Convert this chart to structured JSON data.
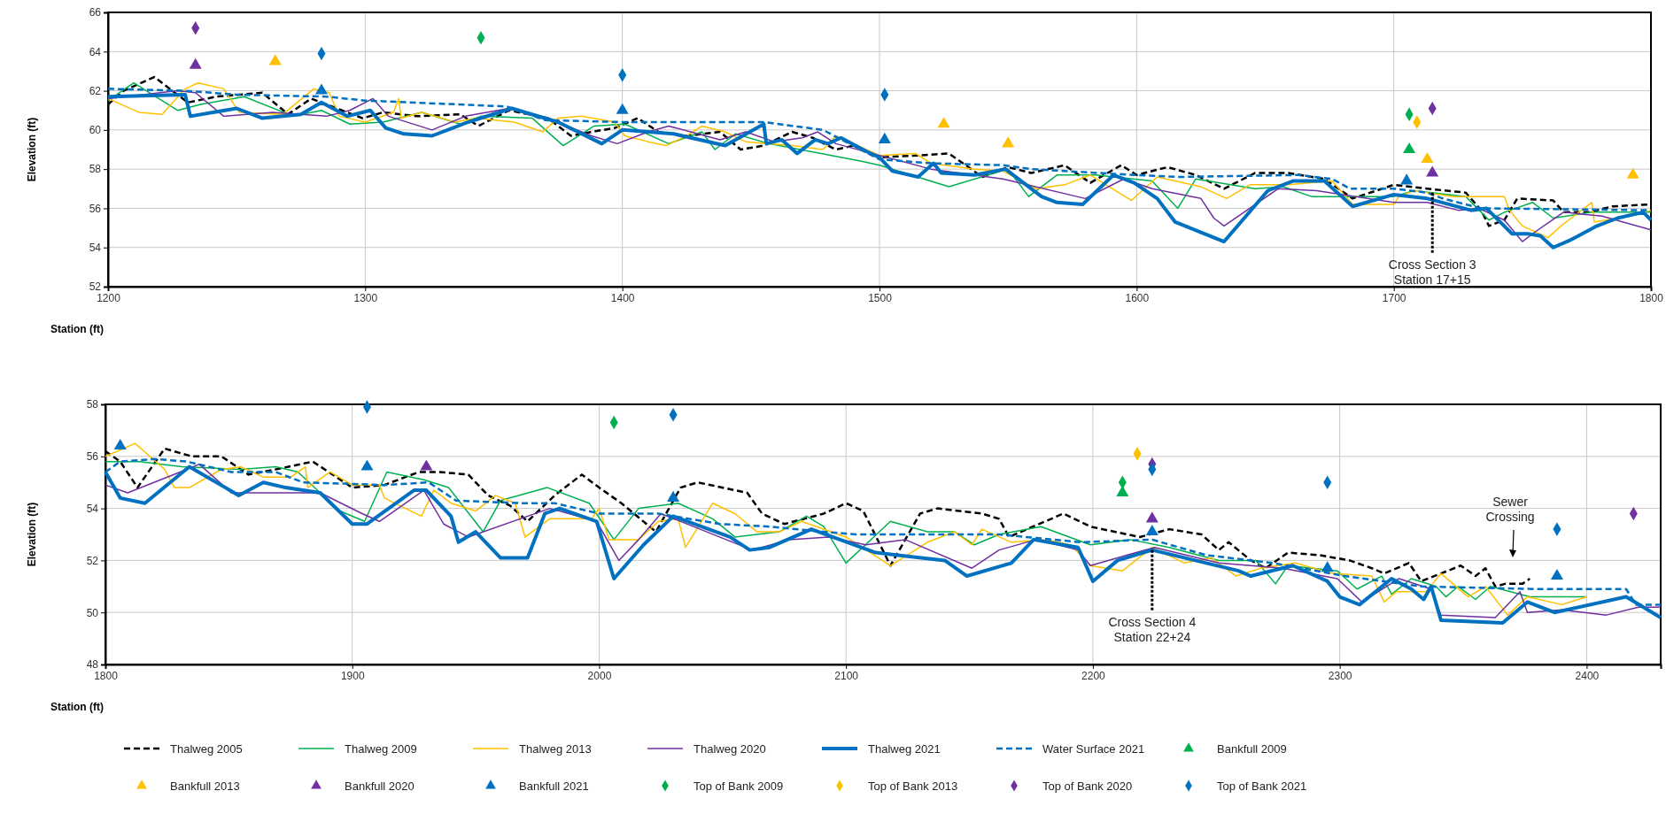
{
  "chart_data": [
    {
      "type": "line",
      "xlabel": "Station (ft)",
      "ylabel": "Elevation (ft)",
      "xlim": [
        1200,
        1800
      ],
      "xticks": [
        1200,
        1300,
        1400,
        1500,
        1600,
        1700,
        1800
      ],
      "ylim": [
        52,
        66
      ],
      "yticks": [
        52,
        54,
        56,
        58,
        60,
        62,
        64,
        66
      ],
      "grid": true,
      "legend": "bottom",
      "annotations": [
        {
          "text": "Cross Section 3\nStation 17+15",
          "x": 1715,
          "y": 56.8
        }
      ],
      "series": [
        {
          "name": "Thalweg 2005",
          "color": "#000000",
          "line_style": "dashed",
          "marker": "none",
          "x": [
            1200,
            1206,
            1218,
            1231,
            1242,
            1260,
            1270,
            1279,
            1299,
            1307,
            1320,
            1337,
            1344,
            1356,
            1371,
            1380,
            1388,
            1397,
            1406,
            1414,
            1425,
            1438,
            1446,
            1455,
            1466,
            1474,
            1483,
            1490,
            1500,
            1515,
            1527,
            1540,
            1550,
            1559,
            1572,
            1582,
            1594,
            1600,
            1612,
            1623,
            1634,
            1646,
            1659,
            1673,
            1684,
            1700,
            1713,
            1728,
            1734,
            1737,
            1743,
            1748,
            1762,
            1766,
            1776,
            1785,
            1800
          ],
          "values": [
            61.3,
            62.0,
            62.7,
            61.4,
            61.7,
            61.9,
            60.8,
            61.6,
            60.6,
            60.9,
            60.7,
            60.8,
            60.2,
            61.0,
            60.6,
            59.7,
            59.9,
            60.1,
            60.6,
            59.9,
            59.7,
            59.9,
            59.0,
            59.2,
            59.9,
            59.6,
            59.0,
            59.2,
            58.6,
            58.7,
            58.8,
            57.6,
            58.1,
            57.8,
            58.2,
            57.3,
            58.2,
            57.7,
            58.1,
            57.7,
            57.0,
            57.8,
            57.8,
            57.5,
            56.5,
            57.2,
            57.0,
            56.8,
            55.9,
            55.1,
            55.4,
            56.5,
            56.4,
            55.8,
            55.8,
            56.1,
            56.2
          ]
        },
        {
          "name": "Thalweg 2009",
          "color": "#00b050",
          "line_style": "solid",
          "marker": "none",
          "x": [
            1200,
            1210,
            1227,
            1236,
            1253,
            1272,
            1283,
            1294,
            1307,
            1322,
            1337,
            1345,
            1365,
            1377,
            1389,
            1401,
            1418,
            1431,
            1436,
            1444,
            1457,
            1493,
            1500,
            1527,
            1550,
            1558,
            1569,
            1584,
            1606,
            1616,
            1623,
            1646,
            1657,
            1668,
            1683,
            1700,
            1708,
            1728,
            1734,
            1737,
            1743,
            1754,
            1762,
            1777,
            1800
          ],
          "values": [
            61.5,
            62.4,
            61.0,
            61.3,
            61.7,
            60.7,
            61.0,
            60.3,
            60.4,
            60.9,
            60.3,
            60.7,
            60.6,
            59.2,
            60.2,
            60.3,
            59.3,
            59.9,
            59.0,
            59.8,
            59.3,
            58.4,
            58.2,
            57.1,
            58.0,
            56.6,
            57.7,
            57.7,
            57.4,
            56.0,
            57.5,
            57.0,
            57.1,
            56.6,
            56.6,
            56.6,
            56.9,
            56.6,
            55.8,
            55.4,
            55.8,
            56.3,
            55.5,
            55.8,
            55.8
          ]
        },
        {
          "name": "Thalweg 2013",
          "color": "#ffc000",
          "line_style": "solid",
          "marker": "none",
          "x": [
            1200,
            1212,
            1221,
            1230,
            1235,
            1245,
            1251,
            1268,
            1280,
            1286,
            1290,
            1300,
            1311,
            1313,
            1314,
            1322,
            1335,
            1343,
            1358,
            1369,
            1375,
            1384,
            1397,
            1401,
            1410,
            1417,
            1425,
            1431,
            1440,
            1448,
            1466,
            1478,
            1483,
            1500,
            1514,
            1520,
            1537,
            1548,
            1561,
            1572,
            1582,
            1593,
            1598,
            1608,
            1625,
            1635,
            1644,
            1659,
            1676,
            1684,
            1700,
            1702,
            1708,
            1723,
            1743,
            1745,
            1750,
            1760,
            1765,
            1777,
            1778,
            1787,
            1800
          ],
          "values": [
            61.6,
            60.9,
            60.8,
            62.1,
            62.4,
            62.1,
            60.9,
            60.8,
            62.1,
            61.9,
            60.7,
            60.4,
            60.9,
            61.6,
            60.6,
            60.9,
            60.4,
            60.6,
            60.4,
            59.9,
            60.6,
            60.7,
            60.4,
            59.7,
            59.4,
            59.2,
            59.7,
            60.2,
            59.9,
            59.4,
            59.2,
            59.0,
            59.7,
            58.7,
            58.8,
            58.3,
            58.0,
            57.9,
            57.0,
            57.2,
            57.7,
            56.8,
            56.4,
            57.6,
            57.1,
            56.5,
            57.2,
            57.2,
            57.4,
            56.2,
            56.2,
            56.6,
            56.9,
            56.6,
            56.6,
            55.9,
            55.1,
            54.5,
            55.1,
            56.3,
            55.3,
            55.5,
            55.9
          ]
        },
        {
          "name": "Thalweg 2020",
          "color": "#7030a0",
          "line_style": "solid",
          "marker": "none",
          "x": [
            1200,
            1227,
            1234,
            1245,
            1264,
            1285,
            1294,
            1303,
            1309,
            1326,
            1339,
            1356,
            1371,
            1388,
            1398,
            1410,
            1418,
            1438,
            1448,
            1459,
            1470,
            1476,
            1483,
            1500,
            1520,
            1548,
            1580,
            1595,
            1606,
            1625,
            1630,
            1634,
            1655,
            1670,
            1700,
            1713,
            1725,
            1733,
            1743,
            1750,
            1755,
            1766,
            1781,
            1800
          ],
          "values": [
            61.6,
            62.0,
            61.9,
            60.7,
            60.9,
            60.7,
            61.0,
            61.6,
            60.7,
            60.0,
            60.7,
            61.1,
            60.6,
            59.7,
            59.3,
            59.9,
            60.2,
            59.5,
            59.9,
            59.4,
            59.6,
            59.9,
            59.3,
            58.7,
            58.0,
            57.5,
            56.5,
            57.5,
            57.0,
            56.5,
            55.5,
            55.1,
            57.0,
            56.9,
            56.3,
            56.3,
            55.9,
            56.0,
            55.4,
            54.3,
            54.8,
            55.8,
            55.6,
            54.9
          ]
        },
        {
          "name": "Thalweg 2021",
          "color": "#0070c0",
          "line_style": "solid",
          "marker": "none",
          "x": [
            1200,
            1230,
            1232,
            1250,
            1260,
            1275,
            1283,
            1293,
            1302,
            1308,
            1315,
            1326,
            1340,
            1357,
            1375,
            1392,
            1400,
            1420,
            1440,
            1455,
            1456,
            1462,
            1468,
            1475,
            1480,
            1485,
            1495,
            1500,
            1505,
            1515,
            1521,
            1524,
            1537,
            1549,
            1563,
            1569,
            1579,
            1591,
            1599,
            1608,
            1615,
            1634,
            1651,
            1661,
            1673,
            1684,
            1700,
            1713,
            1730,
            1736,
            1746,
            1752,
            1757,
            1762,
            1769,
            1779,
            1787,
            1797,
            1800
          ],
          "values": [
            61.7,
            61.8,
            60.7,
            61.1,
            60.6,
            60.8,
            61.4,
            60.7,
            61.0,
            60.1,
            59.8,
            59.7,
            60.4,
            61.1,
            60.4,
            59.3,
            60.0,
            59.8,
            59.2,
            60.3,
            59.3,
            59.5,
            58.8,
            59.5,
            59.3,
            59.6,
            58.9,
            58.6,
            57.9,
            57.6,
            58.3,
            57.8,
            57.7,
            58.0,
            56.6,
            56.3,
            56.2,
            57.7,
            57.3,
            56.5,
            55.3,
            54.3,
            56.9,
            57.4,
            57.4,
            56.1,
            56.7,
            56.5,
            55.9,
            56.0,
            54.7,
            54.7,
            54.6,
            54.0,
            54.4,
            55.1,
            55.5,
            55.8,
            55.4
          ]
        },
        {
          "name": "Water Surface 2021",
          "color": "#0070c0",
          "line_style": "dashed",
          "marker": "none",
          "x": [
            1200,
            1230,
            1250,
            1285,
            1300,
            1355,
            1370,
            1400,
            1455,
            1478,
            1500,
            1510,
            1520,
            1548,
            1559,
            1599,
            1616,
            1663,
            1676,
            1683,
            1700,
            1713,
            1719,
            1734,
            1800
          ],
          "values": [
            62.1,
            62.0,
            61.8,
            61.7,
            61.5,
            61.2,
            60.5,
            60.4,
            60.4,
            60.0,
            58.5,
            58.4,
            58.3,
            58.2,
            58.0,
            57.7,
            57.6,
            57.7,
            57.5,
            57.0,
            57.0,
            56.8,
            56.5,
            56.0,
            55.9
          ]
        },
        {
          "name": "Bankfull 2009",
          "type": "scatter",
          "color": "#00b050",
          "marker": "triangle",
          "x": [
            1706
          ],
          "values": [
            59.0
          ]
        },
        {
          "name": "Bankfull 2013",
          "type": "scatter",
          "color": "#ffc000",
          "marker": "triangle",
          "x": [
            1265,
            1525,
            1550,
            1713,
            1793
          ],
          "values": [
            63.5,
            60.3,
            59.3,
            58.5,
            57.7
          ]
        },
        {
          "name": "Bankfull 2020",
          "type": "scatter",
          "color": "#7030a0",
          "marker": "triangle",
          "x": [
            1234,
            1715
          ],
          "values": [
            63.3,
            57.8
          ]
        },
        {
          "name": "Bankfull 2021",
          "type": "scatter",
          "color": "#0070c0",
          "marker": "triangle",
          "x": [
            1283,
            1400,
            1502,
            1705
          ],
          "values": [
            62.0,
            61.0,
            59.5,
            57.4
          ]
        },
        {
          "name": "Top of Bank 2009",
          "type": "scatter",
          "color": "#00b050",
          "marker": "diamond",
          "x": [
            1345,
            1706
          ],
          "values": [
            64.7,
            60.8
          ]
        },
        {
          "name": "Top of Bank 2013",
          "type": "scatter",
          "color": "#ffc000",
          "marker": "diamond",
          "x": [
            1709
          ],
          "values": [
            60.4
          ]
        },
        {
          "name": "Top of Bank 2020",
          "type": "scatter",
          "color": "#7030a0",
          "marker": "diamond",
          "x": [
            1234,
            1715
          ],
          "values": [
            65.2,
            61.1
          ]
        },
        {
          "name": "Top of Bank 2021",
          "type": "scatter",
          "color": "#0070c0",
          "marker": "diamond",
          "x": [
            1283,
            1400,
            1502
          ],
          "values": [
            63.9,
            62.8,
            61.8
          ]
        }
      ]
    },
    {
      "type": "line",
      "xlabel": "Station (ft)",
      "ylabel": "Elevation (ft)",
      "xlim": [
        1800,
        2430
      ],
      "xticks": [
        1800,
        1900,
        2000,
        2100,
        2200,
        2300,
        2400
      ],
      "ylim": [
        48,
        58
      ],
      "yticks": [
        48,
        50,
        52,
        54,
        56,
        58
      ],
      "grid": true,
      "annotations": [
        {
          "text": "Cross Section 4\nStation 22+24",
          "x": 2224,
          "y": 52.4
        },
        "Sewer\nCrossing"
      ],
      "series": [
        {
          "color": "#000000",
          "line_style": "dashed",
          "marker": "none",
          "x": [
            1800,
            1806,
            1813,
            1824,
            1835,
            1847,
            1858,
            1869,
            1884,
            1900,
            1913,
            1927,
            1935,
            1947,
            1955,
            1964,
            1971,
            1982,
            1993,
            2000,
            2009,
            2023,
            2033,
            2040,
            2060,
            2066,
            2075,
            2091,
            2100,
            2107,
            2118,
            2130,
            2137,
            2155,
            2162,
            2166,
            2188,
            2199,
            2219,
            2231,
            2244,
            2251,
            2255,
            2264,
            2270,
            2279,
            2292,
            2304,
            2313,
            2318,
            2328,
            2333,
            2341,
            2349,
            2355,
            2359,
            2363,
            2367,
            2374,
            2377
          ],
          "values": [
            56.2,
            55.8,
            54.8,
            56.3,
            56.0,
            56.0,
            55.3,
            55.5,
            55.8,
            54.8,
            54.9,
            55.4,
            55.4,
            55.3,
            54.5,
            54.1,
            53.5,
            54.5,
            55.3,
            54.8,
            54.2,
            53.1,
            54.8,
            55.0,
            54.6,
            53.8,
            53.4,
            53.8,
            54.2,
            53.9,
            51.8,
            53.8,
            54.0,
            53.8,
            53.6,
            52.9,
            53.8,
            53.3,
            52.9,
            53.2,
            53.0,
            52.4,
            52.7,
            52.0,
            51.7,
            52.3,
            52.2,
            52.0,
            51.7,
            51.5,
            51.9,
            51.2,
            51.5,
            51.8,
            51.4,
            51.7,
            51.0,
            51.1,
            51.1,
            51.3
          ]
        },
        {
          "color": "#00b050",
          "line_style": "solid",
          "marker": "none",
          "x": [
            1800,
            1814,
            1831,
            1855,
            1869,
            1878,
            1887,
            1895,
            1905,
            1914,
            1929,
            1939,
            1953,
            1960,
            1979,
            1996,
            2006,
            2016,
            2032,
            2046,
            2055,
            2073,
            2084,
            2091,
            2100,
            2118,
            2133,
            2144,
            2152,
            2162,
            2179,
            2199,
            2215,
            2231,
            2251,
            2266,
            2274,
            2279,
            2299,
            2307,
            2317,
            2321,
            2329,
            2339,
            2343,
            2348,
            2355,
            2361,
            2377,
            2400
          ],
          "values": [
            55.8,
            55.8,
            55.6,
            55.5,
            55.6,
            55.4,
            54.6,
            53.9,
            53.5,
            55.4,
            55.1,
            54.8,
            53.1,
            54.3,
            54.8,
            54.2,
            52.8,
            54.0,
            54.2,
            53.6,
            52.9,
            53.1,
            53.7,
            53.3,
            51.9,
            53.5,
            53.1,
            53.1,
            52.6,
            53.0,
            53.3,
            52.6,
            52.8,
            52.5,
            52.0,
            52.0,
            51.1,
            51.8,
            51.6,
            50.9,
            51.4,
            50.7,
            51.3,
            51.0,
            50.6,
            51.0,
            50.5,
            51.0,
            50.6,
            50.6
          ]
        },
        {
          "color": "#ffc000",
          "line_style": "solid",
          "marker": "none",
          "x": [
            1800,
            1812,
            1824,
            1828,
            1834,
            1847,
            1855,
            1864,
            1875,
            1881,
            1882,
            1891,
            1900,
            1911,
            1913,
            1928,
            1933,
            1940,
            1950,
            1958,
            1966,
            1970,
            1980,
            1997,
            2000,
            2004,
            2016,
            2024,
            2032,
            2035,
            2046,
            2055,
            2064,
            2073,
            2082,
            2100,
            2118,
            2133,
            2144,
            2151,
            2155,
            2167,
            2181,
            2191,
            2199,
            2212,
            2224,
            2237,
            2248,
            2258,
            2268,
            2282,
            2297,
            2313,
            2318,
            2323,
            2335,
            2341,
            2352,
            2359,
            2368,
            2376,
            2390,
            2400
          ],
          "values": [
            56.0,
            56.5,
            55.5,
            54.8,
            54.8,
            55.5,
            55.6,
            55.2,
            55.2,
            55.6,
            54.8,
            55.4,
            54.9,
            54.9,
            54.4,
            53.7,
            54.7,
            54.2,
            53.9,
            54.5,
            54.2,
            52.9,
            53.6,
            53.6,
            54.0,
            52.8,
            52.8,
            53.5,
            53.6,
            52.5,
            54.2,
            53.8,
            53.1,
            53.1,
            53.5,
            52.9,
            51.8,
            52.7,
            53.1,
            52.6,
            53.2,
            52.7,
            52.8,
            52.6,
            51.8,
            51.6,
            52.5,
            51.9,
            52.1,
            51.4,
            51.7,
            51.9,
            51.5,
            51.4,
            50.4,
            50.8,
            50.8,
            51.5,
            50.6,
            51.0,
            49.9,
            50.6,
            50.3,
            50.6
          ]
        },
        {
          "color": "#7030a0",
          "line_style": "solid",
          "marker": "none",
          "x": [
            1800,
            1809,
            1833,
            1838,
            1851,
            1868,
            1887,
            1904,
            1911,
            1929,
            1937,
            1947,
            1980,
            1999,
            2008,
            2016,
            2025,
            2062,
            2077,
            2093,
            2108,
            2124,
            2151,
            2162,
            2177,
            2194,
            2199,
            2210,
            2225,
            2251,
            2277,
            2299,
            2309,
            2324,
            2337,
            2341,
            2363,
            2373,
            2376,
            2390,
            2408,
            2421,
            2430
          ],
          "values": [
            54.9,
            54.6,
            55.5,
            55.7,
            54.6,
            54.6,
            54.6,
            53.8,
            53.5,
            54.7,
            53.4,
            52.9,
            54.0,
            53.5,
            52.0,
            52.8,
            53.8,
            52.4,
            52.8,
            52.9,
            52.6,
            52.8,
            51.7,
            52.4,
            52.8,
            52.4,
            51.8,
            52.1,
            52.5,
            51.9,
            51.7,
            51.3,
            50.4,
            51.3,
            50.9,
            49.9,
            49.8,
            50.8,
            50.0,
            50.1,
            49.9,
            50.2,
            50.2
          ]
        },
        {
          "color": "#0070c0",
          "line_style": "solid",
          "marker": "none",
          "x": [
            1800,
            1806,
            1816,
            1834,
            1854,
            1864,
            1873,
            1887,
            1900,
            1906,
            1925,
            1930,
            1940,
            1943,
            1950,
            1960,
            1971,
            1978,
            1984,
            1999,
            2006,
            2018,
            2030,
            2053,
            2061,
            2069,
            2086,
            2112,
            2140,
            2149,
            2167,
            2176,
            2194,
            2200,
            2210,
            2224,
            2259,
            2264,
            2281,
            2295,
            2300,
            2308,
            2321,
            2329,
            2334,
            2337,
            2341,
            2366,
            2376,
            2387,
            2416,
            2430
          ],
          "values": [
            55.4,
            54.4,
            54.2,
            55.6,
            54.5,
            55.0,
            54.8,
            54.6,
            53.4,
            53.4,
            54.7,
            54.7,
            53.7,
            52.7,
            53.1,
            52.1,
            52.1,
            53.8,
            54.0,
            53.5,
            51.3,
            52.6,
            53.7,
            52.9,
            52.4,
            52.5,
            53.2,
            52.3,
            52.0,
            51.4,
            51.9,
            52.8,
            52.5,
            51.2,
            52.0,
            52.4,
            51.6,
            51.4,
            51.8,
            51.2,
            50.6,
            50.3,
            51.3,
            50.9,
            50.5,
            51.0,
            49.7,
            49.6,
            50.4,
            50.0,
            50.6,
            49.8
          ]
        },
        {
          "color": "#0070c0",
          "line_style": "dashed",
          "marker": "none",
          "x": [
            1800,
            1806,
            1820,
            1833,
            1851,
            1869,
            1880,
            1913,
            1931,
            1942,
            1969,
            1982,
            2000,
            2024,
            2049,
            2069,
            2091,
            2104,
            2162,
            2195,
            2224,
            2246,
            2273,
            2302,
            2333,
            2379,
            2416,
            2420,
            2430
          ],
          "values": [
            55.4,
            55.8,
            55.9,
            55.8,
            55.4,
            55.4,
            55.0,
            54.9,
            55.0,
            54.3,
            54.2,
            54.2,
            53.8,
            53.8,
            53.4,
            53.3,
            53.1,
            53.0,
            53.0,
            52.7,
            52.8,
            52.2,
            51.9,
            51.4,
            51.0,
            50.9,
            50.9,
            50.3,
            50.3
          ]
        },
        {
          "type": "scatter",
          "color": "#00b050",
          "marker": "triangle",
          "x": [
            2212
          ],
          "values": [
            54.6
          ]
        },
        {
          "type": "scatter",
          "color": "#7030a0",
          "marker": "triangle",
          "x": [
            1930,
            2224
          ],
          "values": [
            55.6,
            53.6
          ]
        },
        {
          "type": "scatter",
          "color": "#0070c0",
          "marker": "triangle",
          "x": [
            1806,
            1906,
            2030,
            2224,
            2295,
            2388
          ],
          "values": [
            56.4,
            55.6,
            54.4,
            53.1,
            51.7,
            51.4
          ]
        },
        {
          "type": "scatter",
          "color": "#00b050",
          "marker": "diamond",
          "x": [
            2006,
            2212
          ],
          "values": [
            57.3,
            55.0
          ]
        },
        {
          "type": "scatter",
          "color": "#ffc000",
          "marker": "diamond",
          "x": [
            2218
          ],
          "values": [
            56.1
          ]
        },
        {
          "type": "scatter",
          "color": "#7030a0",
          "marker": "diamond",
          "x": [
            2224,
            2419
          ],
          "values": [
            55.7,
            53.8
          ]
        },
        {
          "type": "scatter",
          "color": "#0070c0",
          "marker": "diamond",
          "x": [
            1906,
            2030,
            2224,
            2295,
            2388
          ],
          "values": [
            57.9,
            57.6,
            55.5,
            55.0,
            53.2
          ]
        }
      ]
    }
  ]
}
